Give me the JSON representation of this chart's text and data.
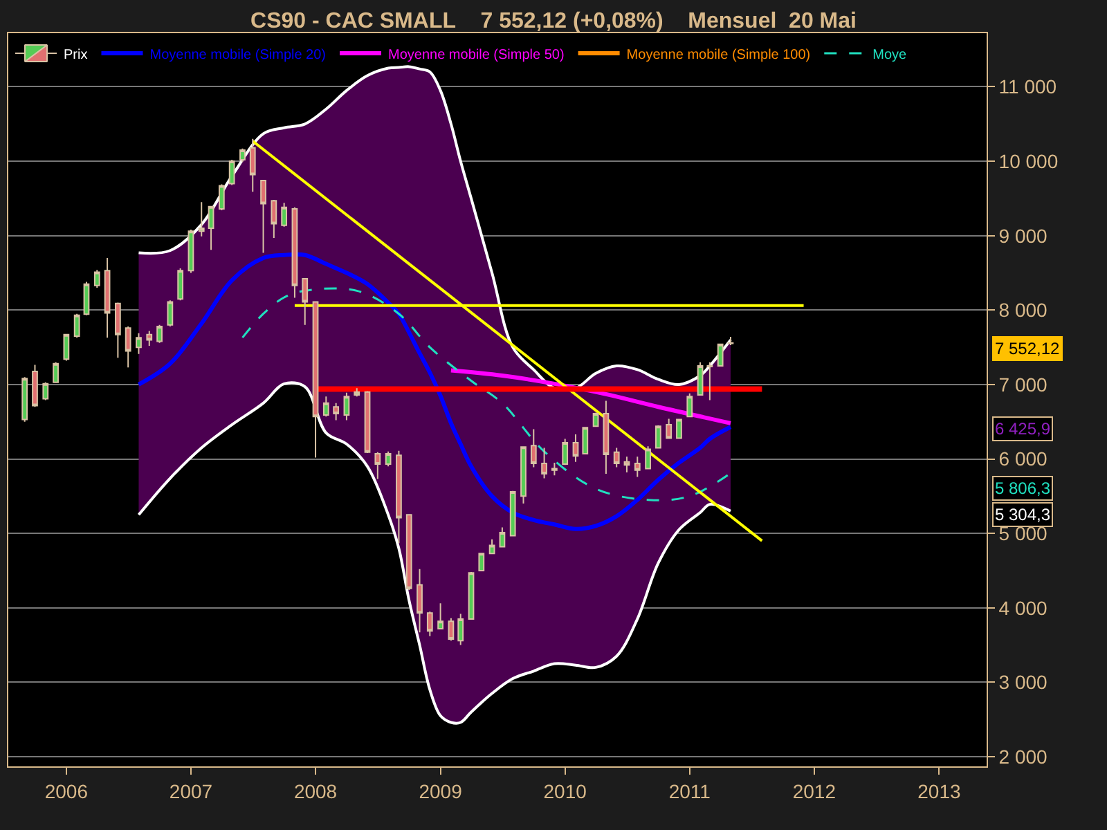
{
  "chart_data": {
    "type": "candlestick",
    "title": "CS90 - CAC SMALL    7 552,12 (+0,08%)    Mensuel  20 Mai",
    "xlim": [
      "2005-07-15",
      "2013-05-20"
    ],
    "xticks": [
      "2006",
      "2007",
      "2008",
      "2009",
      "2010",
      "2011",
      "2012",
      "2013"
    ],
    "ylim": [
      1870,
      11720
    ],
    "yticks": [
      {
        "value": 2000,
        "label": "2 000"
      },
      {
        "value": 3000,
        "label": "3 000"
      },
      {
        "value": 4000,
        "label": "4 000"
      },
      {
        "value": 5000,
        "label": "5 000"
      },
      {
        "value": 6000,
        "label": "6 000"
      },
      {
        "value": 7000,
        "label": "7 000"
      },
      {
        "value": 8000,
        "label": "8 000"
      },
      {
        "value": 9000,
        "label": "9 000"
      },
      {
        "value": 10000,
        "label": "10 000"
      },
      {
        "value": 11000,
        "label": "11 000"
      }
    ],
    "grid": "y",
    "legend": "top left",
    "series": [
      {
        "name": "Prix",
        "x": [
          "2005-09",
          "2005-10",
          "2005-11",
          "2005-12",
          "2006-01",
          "2006-02",
          "2006-03",
          "2006-04",
          "2006-05",
          "2006-06",
          "2006-07",
          "2006-08",
          "2006-09",
          "2006-10",
          "2006-11",
          "2006-12",
          "2007-01",
          "2007-02",
          "2007-03",
          "2007-04",
          "2007-05",
          "2007-06",
          "2007-07",
          "2007-08",
          "2007-09",
          "2007-10",
          "2007-11",
          "2007-12",
          "2008-01",
          "2008-02",
          "2008-03",
          "2008-04",
          "2008-05",
          "2008-06",
          "2008-07",
          "2008-08",
          "2008-09",
          "2008-10",
          "2008-11",
          "2008-12",
          "2009-01",
          "2009-02",
          "2009-03",
          "2009-04",
          "2009-05",
          "2009-06",
          "2009-07",
          "2009-08",
          "2009-09",
          "2009-10",
          "2009-11",
          "2009-12",
          "2010-01",
          "2010-02",
          "2010-03",
          "2010-04",
          "2010-05",
          "2010-06",
          "2010-07",
          "2010-08",
          "2010-09",
          "2010-10",
          "2010-11",
          "2010-12",
          "2011-01",
          "2011-02",
          "2011-03",
          "2011-04",
          "2011-05"
        ],
        "ohlc": [
          [
            6530,
            7100,
            6500,
            7080
          ],
          [
            7175,
            7265,
            6700,
            6715
          ],
          [
            6810,
            7030,
            6790,
            7010
          ],
          [
            7030,
            7300,
            7020,
            7280
          ],
          [
            7340,
            7680,
            7320,
            7670
          ],
          [
            7650,
            7950,
            7630,
            7930
          ],
          [
            7945,
            8380,
            7930,
            8350
          ],
          [
            8330,
            8540,
            8300,
            8510
          ],
          [
            8530,
            8700,
            7630,
            7960
          ],
          [
            8090,
            8100,
            7360,
            7670
          ],
          [
            7760,
            7780,
            7230,
            7450
          ],
          [
            7500,
            7690,
            7410,
            7630
          ],
          [
            7670,
            7720,
            7520,
            7600
          ],
          [
            7580,
            7800,
            7560,
            7780
          ],
          [
            7800,
            8130,
            7780,
            8110
          ],
          [
            8150,
            8560,
            8130,
            8530
          ],
          [
            8530,
            9080,
            8500,
            9060
          ],
          [
            9060,
            9450,
            8990,
            9100
          ],
          [
            9100,
            9400,
            8810,
            9390
          ],
          [
            9360,
            9690,
            9340,
            9670
          ],
          [
            9700,
            10020,
            9680,
            10000
          ],
          [
            10020,
            10170,
            9990,
            10150
          ],
          [
            10180,
            10300,
            9590,
            9820
          ],
          [
            9740,
            9750,
            8770,
            9430
          ],
          [
            9470,
            9480,
            8970,
            9160
          ],
          [
            9140,
            9440,
            9120,
            9380
          ],
          [
            9360,
            9380,
            8165,
            8330
          ],
          [
            8420,
            8430,
            7800,
            8110
          ],
          [
            8110,
            8120,
            6020,
            6570
          ],
          [
            6590,
            6840,
            6570,
            6750
          ],
          [
            6700,
            6750,
            6520,
            6610
          ],
          [
            6590,
            6890,
            6520,
            6840
          ],
          [
            6860,
            6950,
            6840,
            6900
          ],
          [
            6900,
            6910,
            6080,
            6090
          ],
          [
            6070,
            6090,
            5730,
            5930
          ],
          [
            5930,
            6100,
            5900,
            6070
          ],
          [
            6050,
            6110,
            4870,
            5210
          ],
          [
            5250,
            5260,
            4240,
            4260
          ],
          [
            4310,
            4520,
            3670,
            3930
          ],
          [
            3930,
            3950,
            3620,
            3690
          ],
          [
            3720,
            4060,
            3710,
            3820
          ],
          [
            3820,
            3860,
            3560,
            3580
          ],
          [
            3560,
            3920,
            3500,
            3850
          ],
          [
            3850,
            4480,
            3840,
            4470
          ],
          [
            4500,
            4740,
            4490,
            4730
          ],
          [
            4730,
            4920,
            4720,
            4840
          ],
          [
            4820,
            5080,
            4810,
            5010
          ],
          [
            4970,
            5570,
            4960,
            5560
          ],
          [
            5500,
            6170,
            5400,
            6160
          ],
          [
            6180,
            6400,
            5890,
            5940
          ],
          [
            5940,
            6150,
            5740,
            5800
          ],
          [
            5870,
            5950,
            5780,
            5850
          ],
          [
            5930,
            6270,
            5920,
            6220
          ],
          [
            6220,
            6330,
            5960,
            6040
          ],
          [
            6070,
            6430,
            6060,
            6420
          ],
          [
            6440,
            6620,
            6430,
            6610
          ],
          [
            6610,
            6780,
            5800,
            6060
          ],
          [
            6090,
            6150,
            5890,
            5940
          ],
          [
            5960,
            6030,
            5820,
            5920
          ],
          [
            5940,
            6030,
            5760,
            5850
          ],
          [
            5870,
            6170,
            5860,
            6130
          ],
          [
            6150,
            6450,
            6140,
            6440
          ],
          [
            6460,
            6540,
            6270,
            6280
          ],
          [
            6280,
            6540,
            6270,
            6530
          ],
          [
            6570,
            6880,
            6560,
            6840
          ],
          [
            6860,
            7300,
            6850,
            7250
          ],
          [
            7250,
            7300,
            6790,
            7240
          ],
          [
            7250,
            7550,
            7240,
            7540
          ],
          [
            7560,
            7640,
            7530,
            7552.12
          ]
        ]
      },
      {
        "name": "Moyenne mobile (Simple 20)",
        "type": "line",
        "color": "#0000ff",
        "x": [
          "2006-08",
          "2006-11",
          "2007-02",
          "2007-05",
          "2007-08",
          "2007-10",
          "2007-12",
          "2008-02",
          "2008-04",
          "2008-06",
          "2008-08",
          "2008-09",
          "2008-10",
          "2008-11",
          "2008-12",
          "2009-01",
          "2009-02",
          "2009-03",
          "2009-04",
          "2009-06",
          "2009-08",
          "2009-10",
          "2009-12",
          "2010-02",
          "2010-04",
          "2010-06",
          "2010-08",
          "2010-10",
          "2010-12",
          "2011-02",
          "2011-03",
          "2011-05"
        ],
        "values": [
          7000,
          7280,
          7820,
          8400,
          8700,
          8740,
          8740,
          8620,
          8500,
          8350,
          8100,
          7950,
          7700,
          7420,
          7160,
          6850,
          6480,
          6200,
          5900,
          5500,
          5280,
          5180,
          5120,
          5060,
          5100,
          5230,
          5450,
          5720,
          5950,
          6150,
          6270,
          6430
        ],
        "lower": [
          5250,
          5740,
          6150,
          6460,
          6750,
          7010,
          6970,
          6350,
          6200,
          5900,
          5250,
          4800,
          4100,
          3500,
          2900,
          2550,
          2460,
          2460,
          2600,
          2850,
          3050,
          3150,
          3250,
          3230,
          3200,
          3350,
          3850,
          4600,
          5050,
          5280,
          5390,
          5300
        ],
        "upper": [
          8770,
          8800,
          9150,
          9800,
          10370,
          10450,
          10500,
          10700,
          10950,
          11150,
          11250,
          11260,
          11270,
          11240,
          11200,
          10950,
          10500,
          10000,
          9500,
          8500,
          7500,
          7200,
          6950,
          6950,
          7150,
          7250,
          7200,
          7070,
          7000,
          7120,
          7250,
          7600
        ]
      },
      {
        "type": "line",
        "color": "#ffffff",
        "x": [
          "2006-08",
          "2006-11",
          "2007-02",
          "2007-05",
          "2007-08",
          "2007-10",
          "2007-12",
          "2008-02",
          "2008-04",
          "2008-06",
          "2008-08",
          "2008-09",
          "2008-10",
          "2008-11",
          "2008-12",
          "2009-01",
          "2009-02",
          "2009-03",
          "2009-04",
          "2009-06",
          "2009-08",
          "2009-10",
          "2009-12",
          "2010-02",
          "2010-04",
          "2010-06",
          "2010-08",
          "2010-10",
          "2010-12",
          "2011-02",
          "2011-03",
          "2011-05"
        ],
        "values": [
          8770,
          8800,
          9150,
          9800,
          10370,
          10450,
          10500,
          10700,
          10950,
          11150,
          11250,
          11260,
          11270,
          11240,
          11200,
          10950,
          10500,
          10000,
          9500,
          8500,
          7500,
          7200,
          6950,
          6950,
          7150,
          7250,
          7200,
          7070,
          7000,
          7120,
          7250,
          7600
        ]
      },
      {
        "type": "line",
        "color": "#ffffff",
        "x": [
          "2006-08",
          "2006-11",
          "2007-02",
          "2007-05",
          "2007-08",
          "2007-10",
          "2007-12",
          "2008-02",
          "2008-04",
          "2008-06",
          "2008-08",
          "2008-09",
          "2008-10",
          "2008-11",
          "2008-12",
          "2009-01",
          "2009-02",
          "2009-03",
          "2009-04",
          "2009-06",
          "2009-08",
          "2009-10",
          "2009-12",
          "2010-02",
          "2010-04",
          "2010-06",
          "2010-08",
          "2010-10",
          "2010-12",
          "2011-02",
          "2011-03",
          "2011-05"
        ],
        "values": [
          5250,
          5740,
          6150,
          6460,
          6750,
          7010,
          6970,
          6350,
          6200,
          5900,
          5250,
          4800,
          4100,
          3500,
          2900,
          2550,
          2460,
          2460,
          2600,
          2850,
          3050,
          3150,
          3250,
          3230,
          3200,
          3350,
          3850,
          4600,
          5050,
          5280,
          5390,
          5300
        ]
      },
      {
        "name": "Moyenne mobile (Simple 50)",
        "type": "line",
        "color": "#ff00ff",
        "x": [
          "2009-02",
          "2009-07",
          "2009-12",
          "2010-05",
          "2010-10",
          "2011-05"
        ],
        "values": [
          7190,
          7120,
          7010,
          6870,
          6700,
          6480
        ]
      },
      {
        "name": "Moyenne mobile (Simple 100)",
        "type": "line",
        "color": "#ff8c00",
        "values": [
          null
        ]
      },
      {
        "name": "Moye",
        "type": "line",
        "color": "#20e0c0",
        "line_style": "dashed",
        "x": [
          "2007-06",
          "2007-08",
          "2007-10",
          "2007-12",
          "2008-05",
          "2008-09",
          "2008-12",
          "2009-04",
          "2009-07",
          "2009-11",
          "2010-04",
          "2010-09",
          "2011-01",
          "2011-05"
        ],
        "values": [
          7630,
          7950,
          8170,
          8260,
          8260,
          7950,
          7500,
          7050,
          6750,
          6100,
          5600,
          5450,
          5500,
          5810
        ]
      },
      {
        "type": "line",
        "color": "#ffff00",
        "x": [
          "2007-07",
          "2011-08"
        ],
        "values": [
          10270,
          4900
        ]
      },
      {
        "type": "line",
        "color": "#ffff00",
        "x": [
          "2007-11",
          "2011-12"
        ],
        "values": [
          8060,
          8060
        ]
      },
      {
        "type": "line",
        "color": "#ff0000",
        "x": [
          "2008-01",
          "2011-08"
        ],
        "values": [
          6940,
          6940
        ]
      }
    ],
    "annotations": [
      "7 552,12",
      "6 425,9",
      "5 806,3",
      "5 304,3"
    ]
  }
}
